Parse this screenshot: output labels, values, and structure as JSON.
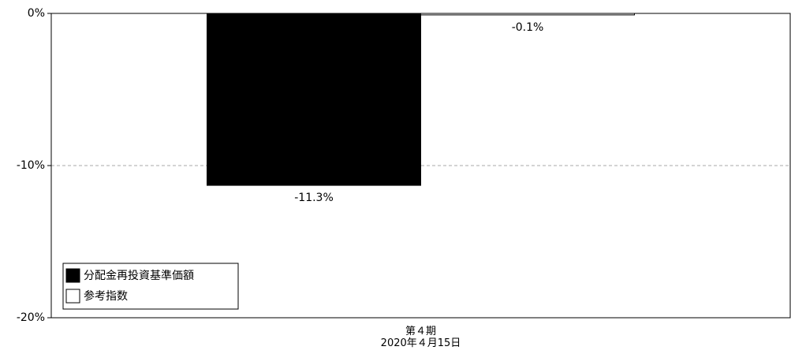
{
  "chart_data": {
    "type": "bar",
    "categories": [
      "第４期\n2020年４月15日"
    ],
    "series": [
      {
        "name": "分配金再投資基準価額",
        "color": "#000000",
        "values": [
          -11.3
        ],
        "value_labels": [
          "-11.3%"
        ]
      },
      {
        "name": "参考指数",
        "color": "#ffffff",
        "values": [
          -0.1
        ],
        "value_labels": [
          "-0.1%"
        ]
      }
    ],
    "ylim": [
      -20,
      0
    ],
    "yticks": [
      {
        "value": -20,
        "label": "-20%"
      },
      {
        "value": -10,
        "label": "-10%"
      },
      {
        "value": 0,
        "label": "0%"
      }
    ],
    "grid": true,
    "legend": "lower left"
  }
}
